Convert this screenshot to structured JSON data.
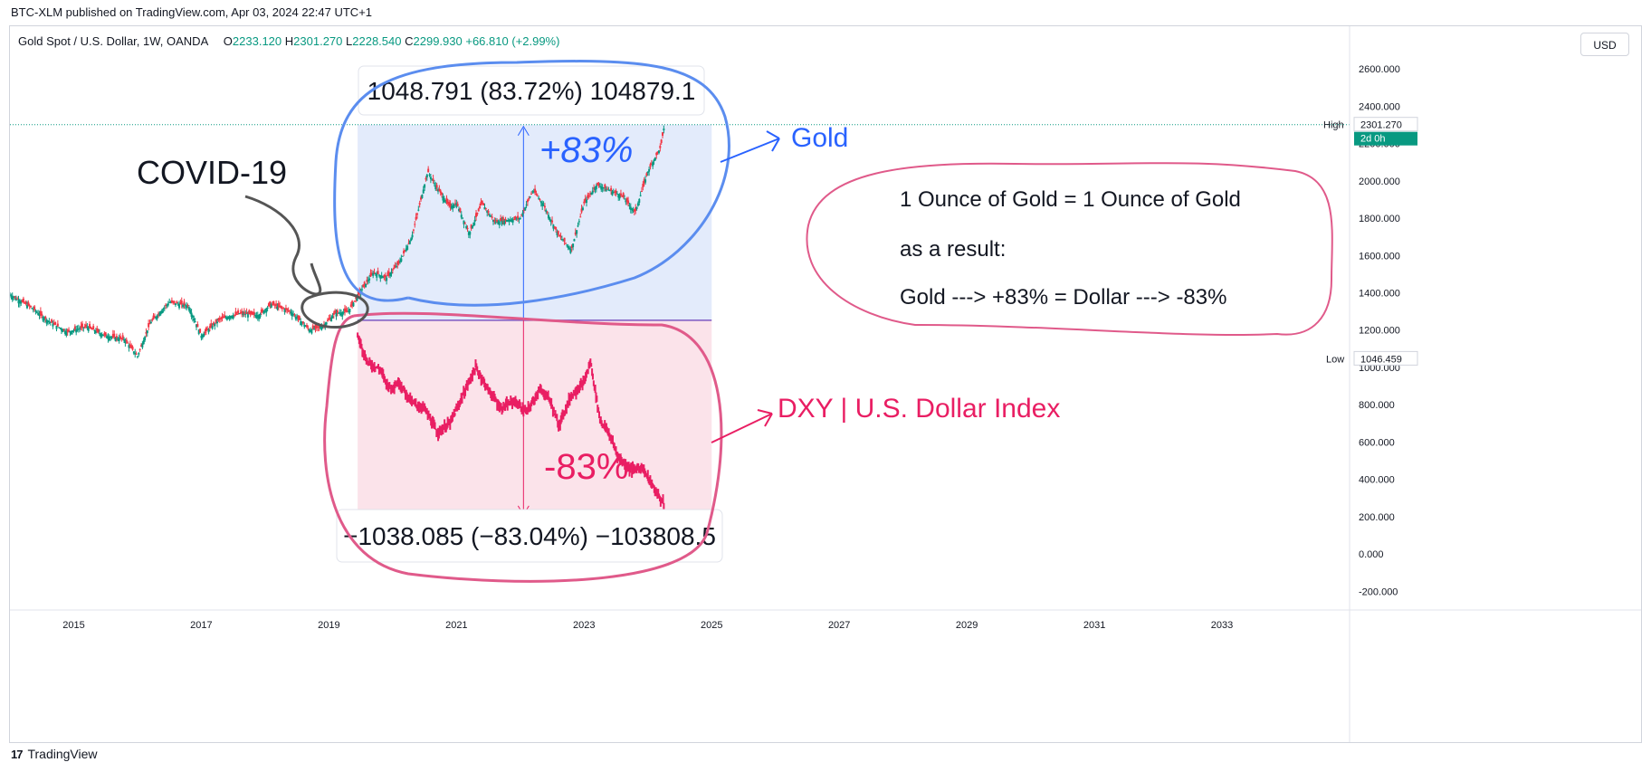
{
  "header": {
    "published": "BTC-XLM published on TradingView.com, Apr 03, 2024 22:47 UTC+1"
  },
  "legend": {
    "symbol": "Gold Spot / U.S. Dollar, 1W, OANDA",
    "o_label": "O",
    "o_value": "2233.120",
    "h_label": "H",
    "h_value": "2301.270",
    "l_label": "L",
    "l_value": "2228.540",
    "c_label": "C",
    "c_value": "2299.930",
    "change": "+66.810 (+2.99%)"
  },
  "currency_button": "USD",
  "footer": {
    "brand": "TradingView",
    "logo_glyph": "17"
  },
  "colors": {
    "up": "#089981",
    "down": "#f23645",
    "gold_blue": "#2962ff",
    "dxy_pink": "#e91e63",
    "circle_blue": "#5b8def",
    "circle_pink": "#e05a8a",
    "gold_zone": "#e3ebfb",
    "dxy_zone": "#fbe3ea"
  },
  "chart_data": {
    "type": "line",
    "title": "Gold Spot / U.S. Dollar, 1W, OANDA",
    "xlabel": "",
    "ylabel": "",
    "x_ticks": [
      "2015",
      "2017",
      "2019",
      "2021",
      "2023",
      "2025",
      "2027",
      "2029",
      "2031",
      "2033"
    ],
    "x_range": [
      2014.0,
      2035.0
    ],
    "y_ticks": [
      "2600.000",
      "2400.000",
      "2200.000",
      "2000.000",
      "1800.000",
      "1600.000",
      "1400.000",
      "1200.000",
      "1000.000",
      "800.000",
      "600.000",
      "400.000",
      "200.000",
      "0.000",
      "-200.000"
    ],
    "ylim": [
      -300,
      2780
    ],
    "high_label": "High",
    "high_value": 2301.27,
    "high_display": "2301.270",
    "countdown": "2d 0h",
    "low_label": "Low",
    "low_value": 1046.459,
    "low_display": "1046.459",
    "base_level": 1252.5,
    "series": [
      {
        "name": "Gold",
        "x": [
          2014.0,
          2014.3,
          2014.6,
          2014.9,
          2015.2,
          2015.5,
          2015.8,
          2016.0,
          2016.2,
          2016.5,
          2016.8,
          2017.0,
          2017.3,
          2017.6,
          2017.9,
          2018.1,
          2018.4,
          2018.7,
          2018.9,
          2019.1,
          2019.3,
          2019.5,
          2019.7,
          2019.9,
          2020.1,
          2020.3,
          2020.55,
          2020.7,
          2020.9,
          2021.0,
          2021.2,
          2021.4,
          2021.6,
          2021.8,
          2022.0,
          2022.2,
          2022.35,
          2022.6,
          2022.8,
          2023.0,
          2023.2,
          2023.4,
          2023.6,
          2023.8,
          2024.0,
          2024.2,
          2024.26
        ],
        "values": [
          1390,
          1330,
          1250,
          1190,
          1220,
          1170,
          1150,
          1060,
          1240,
          1350,
          1330,
          1170,
          1260,
          1290,
          1280,
          1340,
          1300,
          1200,
          1220,
          1290,
          1300,
          1410,
          1510,
          1480,
          1560,
          1700,
          2050,
          1960,
          1860,
          1880,
          1720,
          1880,
          1780,
          1790,
          1800,
          1950,
          1880,
          1710,
          1630,
          1880,
          1980,
          1950,
          1920,
          1830,
          2050,
          2180,
          2300
        ]
      },
      {
        "name": "DXY | U.S. Dollar Index",
        "x": [
          2019.45,
          2019.6,
          2019.8,
          2019.95,
          2020.1,
          2020.3,
          2020.5,
          2020.7,
          2020.9,
          2021.1,
          2021.3,
          2021.5,
          2021.7,
          2021.9,
          2022.1,
          2022.3,
          2022.45,
          2022.6,
          2022.8,
          2023.0,
          2023.1,
          2023.25,
          2023.4,
          2023.55,
          2023.75,
          2023.9,
          2024.1,
          2024.26
        ],
        "values": [
          1170,
          1030,
          990,
          890,
          920,
          810,
          780,
          650,
          700,
          850,
          1000,
          880,
          780,
          820,
          760,
          880,
          840,
          690,
          850,
          920,
          1030,
          720,
          640,
          510,
          450,
          470,
          350,
          260
        ]
      }
    ],
    "annotations": {
      "gold_measure": "1048.791 (83.72%) 104879.1",
      "gold_percent": "+83%",
      "gold_label": "Gold",
      "dxy_measure": "−1038.085 (−83.04%) −103808.5",
      "dxy_percent": "-83%",
      "dxy_label": "DXY | U.S. Dollar Index",
      "covid": "COVID-19",
      "note_line1": "1 Ounce of Gold = 1 Ounce of Gold",
      "note_line2": "as a result:",
      "note_line3": "Gold ---> +83%    =   Dollar ---> -83%"
    }
  }
}
